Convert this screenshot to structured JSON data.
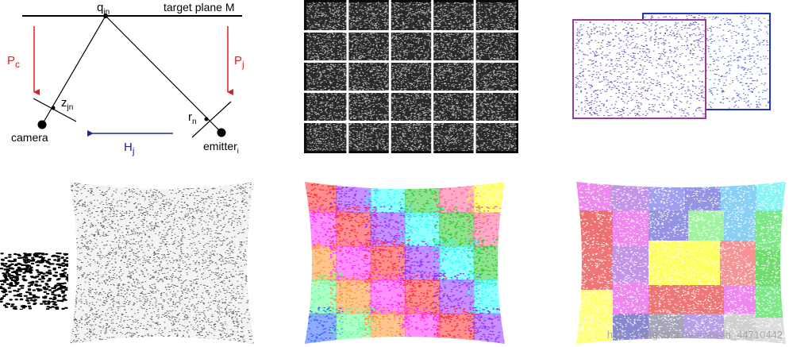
{
  "geometry_diagram": {
    "top_label": "q",
    "top_label_sub": "jn",
    "plane_label": "target plane M",
    "pc_label": "P",
    "pc_sub": "c",
    "pj_label": "P",
    "pj_sub": "j",
    "z_label": "z",
    "z_sub": "jn",
    "r_label": "r",
    "r_sub": "n",
    "camera_label": "camera",
    "emitter_label": "emitter",
    "emitter_sub": "i",
    "h_label": "H",
    "h_sub": "j",
    "colors": {
      "red_arrow": "#e02020",
      "blue_arrow": "#1f2a8a",
      "line": "#000000"
    }
  },
  "grid_tile_colors": [
    "#ff3333",
    "#33cc33",
    "#3366ff",
    "#ff33ff",
    "#33ffff",
    "#ffff33",
    "#ff9933",
    "#9933ff",
    "#ff6699",
    "#66ff99"
  ],
  "overlap_colors": {
    "back": "#2233cc",
    "front": "#9a3a9a"
  },
  "watermark": "https://blog.csdn.net/weixin_44710442"
}
